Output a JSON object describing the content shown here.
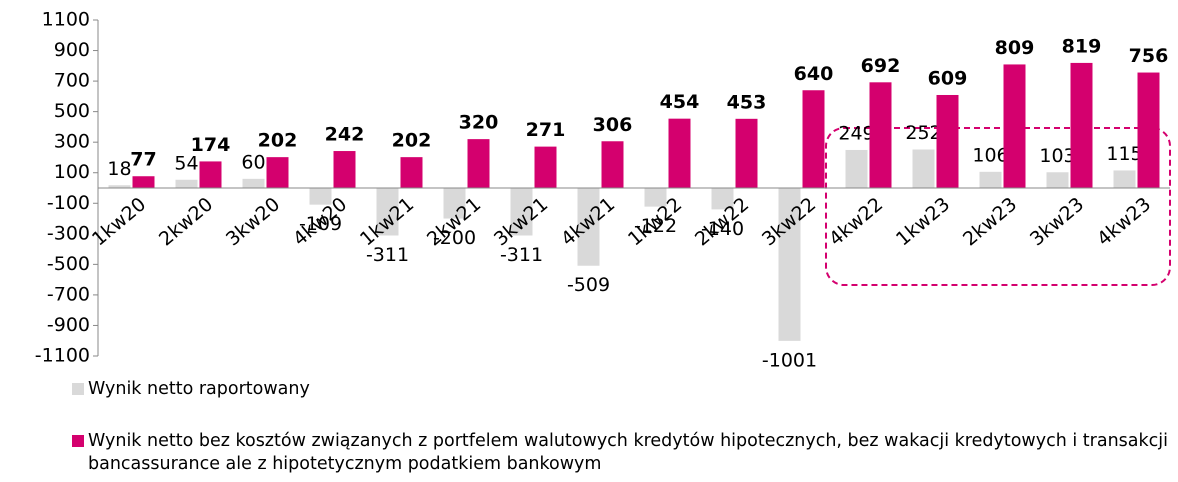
{
  "chart_data": {
    "type": "bar",
    "categories": [
      "1kw20",
      "2kw20",
      "3kw20",
      "4kw20",
      "1kw21",
      "2kw21",
      "3kw21",
      "4kw21",
      "1kw22",
      "2kw22",
      "3kw22",
      "4kw22",
      "1kw23",
      "2kw23",
      "3kw23",
      "4kw23"
    ],
    "series": [
      {
        "name": "Wynik netto raportowany",
        "color": "#d9d9d9",
        "values": [
          18,
          54,
          60,
          -109,
          -311,
          -200,
          -311,
          -509,
          -122,
          -140,
          -1001,
          249,
          252,
          106,
          103,
          115
        ]
      },
      {
        "name": "Wynik netto bez kosztów związanych z portfelem walutowych kredytów hipotecznych, bez wakacji kredytowych i transakcji bancassurance ale z hipotetycznym podatkiem bankowym",
        "color": "#d4006e",
        "values": [
          77,
          174,
          202,
          242,
          202,
          320,
          271,
          306,
          454,
          453,
          640,
          692,
          609,
          809,
          819,
          756
        ]
      }
    ],
    "ylim": [
      -1100,
      1100
    ],
    "yticks": [
      -1100,
      -900,
      -700,
      -500,
      -300,
      -100,
      100,
      300,
      500,
      700,
      900,
      1100
    ],
    "grid": false
  }
}
